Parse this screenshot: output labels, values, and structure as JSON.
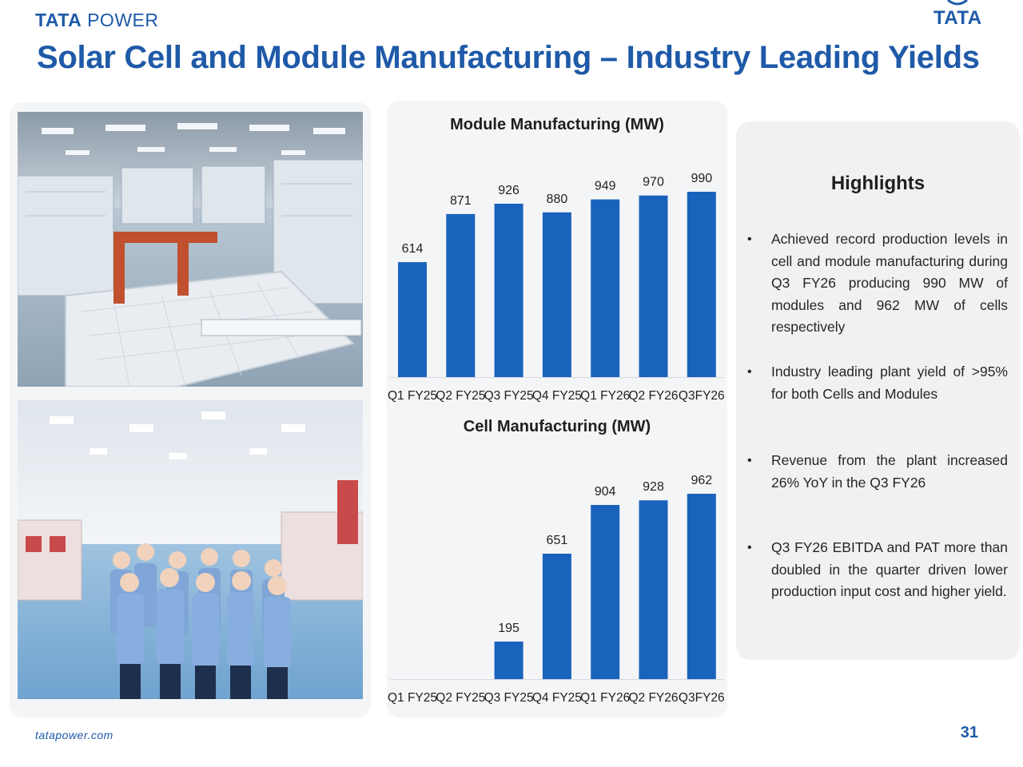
{
  "header": {
    "brand_left_bold": "TATA",
    "brand_left_light": " POWER",
    "brand_right": "TATA",
    "title": "Solar Cell and Module Manufacturing – Industry Leading Yields"
  },
  "colors": {
    "brand_blue": "#1f5aa8",
    "bar_blue": "#1a63bd",
    "panel_grey": "#f4f5f7"
  },
  "chart_data": [
    {
      "type": "bar",
      "title": "Module Manufacturing (MW)",
      "categories": [
        "Q1 FY25",
        "Q2 FY25",
        "Q3 FY25",
        "Q4 FY25",
        "Q1 FY26",
        "Q2 FY26",
        "Q3FY26"
      ],
      "values": [
        614,
        871,
        926,
        880,
        949,
        970,
        990
      ],
      "value_labels": [
        "614",
        "871",
        "926",
        "880",
        "949",
        "970",
        "990"
      ],
      "ylim": [
        0,
        990
      ],
      "grid": false,
      "legend": "none"
    },
    {
      "type": "bar",
      "title": "Cell Manufacturing (MW)",
      "categories": [
        "Q1 FY25",
        "Q2 FY25",
        "Q3 FY25",
        "Q4 FY25",
        "Q1 FY26",
        "Q2 FY26",
        "Q3FY26"
      ],
      "values": [
        0,
        0,
        195,
        651,
        904,
        928,
        962
      ],
      "value_labels": [
        "",
        "",
        "195",
        "651",
        "904",
        "928",
        "962"
      ],
      "ylim": [
        0,
        962
      ],
      "grid": false,
      "legend": "none"
    }
  ],
  "highlights": {
    "title": "Highlights",
    "items": [
      "Achieved record production levels in cell and module manufacturing during Q3 FY26 producing 990 MW of modules and 962 MW of cells respectively",
      "Industry leading plant yield of >95% for both Cells and Modules",
      "Revenue from the plant increased 26% YoY in the Q3 FY26",
      "Q3 FY26 EBITDA and PAT more than doubled in the quarter driven lower production input cost and higher yield."
    ],
    "bullet": "•"
  },
  "footer": {
    "url": "tatapower.com",
    "page_number": "31"
  }
}
